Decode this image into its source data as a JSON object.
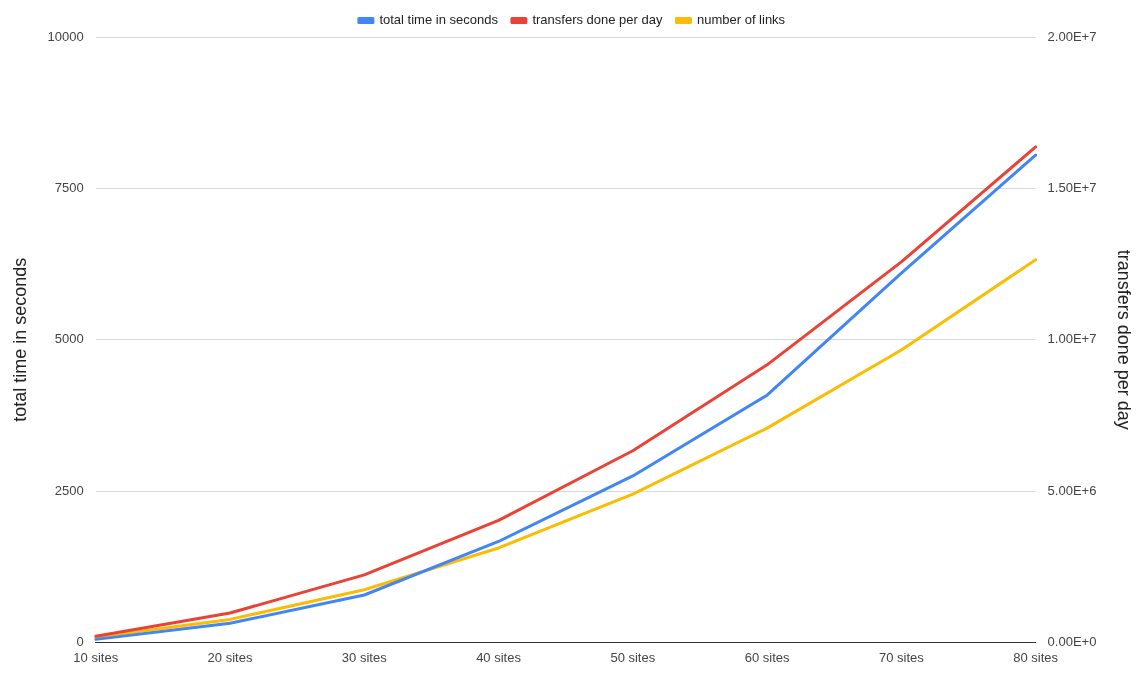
{
  "chart_data": {
    "type": "line",
    "categories": [
      "10 sites",
      "20 sites",
      "30 sites",
      "40 sites",
      "50 sites",
      "60 sites",
      "70 sites",
      "80 sites"
    ],
    "series": [
      {
        "name": "total time in seconds",
        "color": "#4285f4",
        "values": [
          50,
          317,
          783,
          1667,
          2750,
          4083,
          6100,
          8050
        ]
      },
      {
        "name": "transfers done per day",
        "color": "#ea4335",
        "axis": "y2",
        "values": [
          200000,
          970000,
          2230000,
          4030000,
          6330000,
          9170000,
          12570000,
          16370000
        ]
      },
      {
        "name": "number of links",
        "color": "#fbbc04",
        "values": [
          90,
          380,
          870,
          1560,
          2450,
          3540,
          4830,
          6320
        ]
      }
    ],
    "ylabel": "total time in seconds",
    "y2label": "transfers done per day",
    "ylim": [
      0,
      10000
    ],
    "yticks": [
      0,
      2500,
      5000,
      7500,
      10000
    ],
    "y2lim": [
      0,
      20000000
    ],
    "y2ticks": [
      {
        "value": 0,
        "label": "0.00E+0"
      },
      {
        "value": 5000000,
        "label": "5.00E+6"
      },
      {
        "value": 10000000,
        "label": "1.00E+7"
      },
      {
        "value": 15000000,
        "label": "1.50E+7"
      },
      {
        "value": 20000000,
        "label": "2.00E+7"
      }
    ],
    "grid": "y",
    "legend": "top",
    "marker": "none",
    "line_style": "solid"
  }
}
